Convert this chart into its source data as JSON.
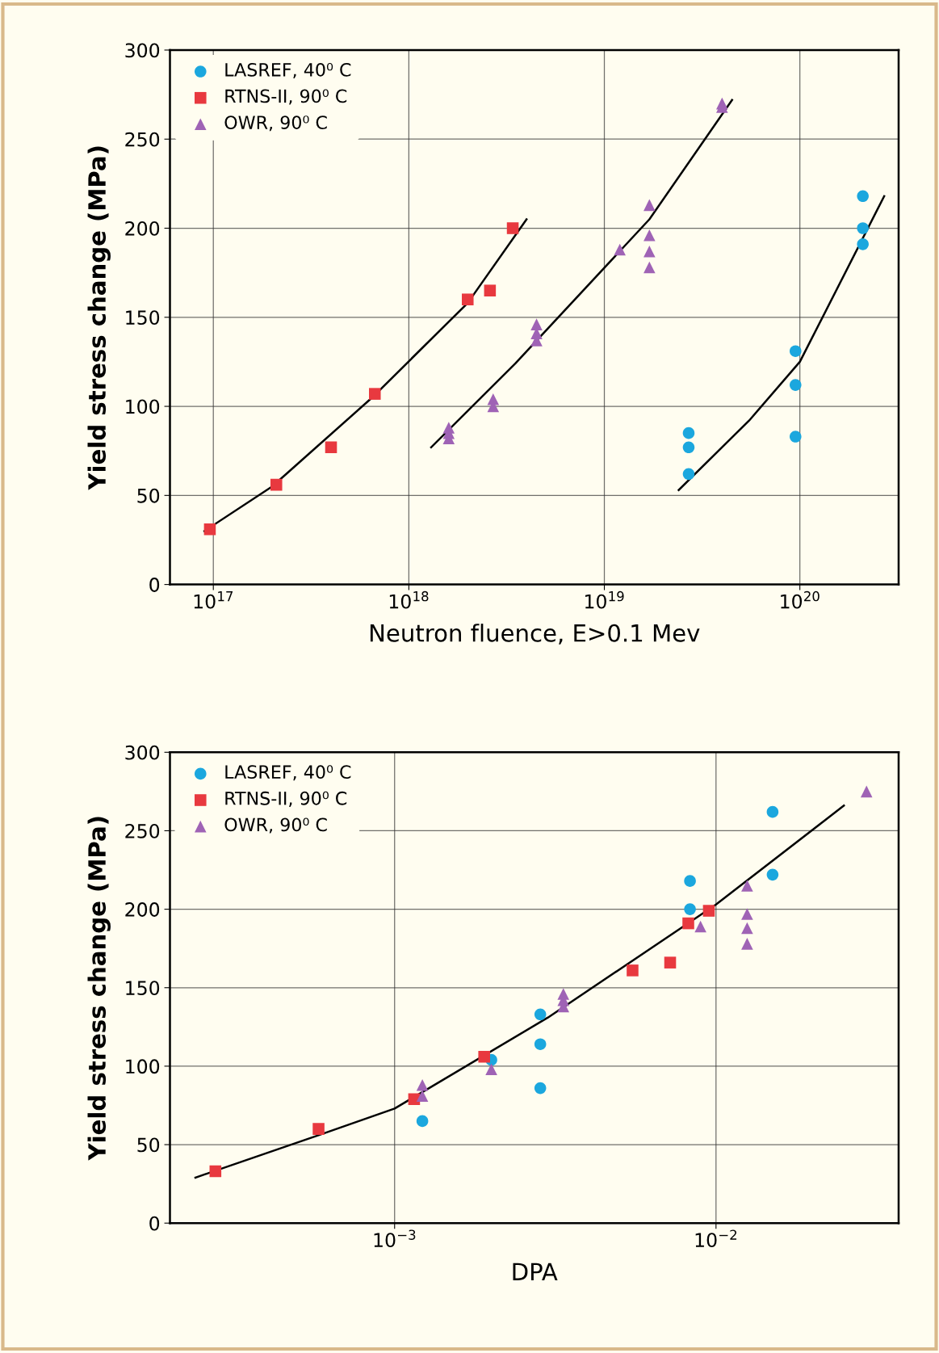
{
  "chart_data": [
    {
      "type": "scatter",
      "xlabel": "Neutron fluence, E>0.1 Mev",
      "ylabel": "Yield stress change (MPa)",
      "log": "x",
      "grid": true,
      "legend": "top left",
      "xlim": [
        6e+16,
        3.2e+20
      ],
      "xticks": [
        {
          "value": 1e+17,
          "label": "10$^{17}$"
        },
        {
          "value": 1e+18,
          "label": "10$^{18}$"
        },
        {
          "value": 1e+19,
          "label": "10$^{19}$"
        },
        {
          "value": 1e+20,
          "label": "10$^{20}$"
        }
      ],
      "ylim": [
        0,
        300
      ],
      "yticks": [
        0,
        50,
        100,
        150,
        200,
        250,
        300
      ],
      "series": [
        {
          "name": "LASREF, 40⁰ C",
          "type": "scatter",
          "marker": "circle",
          "color": "#1ba7de",
          "x": [
            2.7e+19,
            2.7e+19,
            2.7e+19,
            9.5e+19,
            9.5e+19,
            9.5e+19,
            2.1e+20,
            2.1e+20,
            2.1e+20
          ],
          "values": [
            85,
            77,
            62,
            131,
            112,
            83,
            218,
            200,
            191
          ]
        },
        {
          "name": "RTNS-II, 90⁰ C",
          "type": "scatter",
          "marker": "square",
          "color": "#e8393f",
          "x": [
            9.6e+16,
            2.1e+17,
            4e+17,
            6.7e+17,
            2e+18,
            2.6e+18,
            3.4e+18
          ],
          "values": [
            31,
            56,
            77,
            107,
            160,
            165,
            200
          ]
        },
        {
          "name": "OWR, 90⁰ C",
          "type": "scatter",
          "marker": "triangle",
          "color": "#9f63b5",
          "x": [
            1.6e+18,
            1.6e+18,
            1.6e+18,
            2.7e+18,
            2.7e+18,
            4.5e+18,
            4.5e+18,
            4.5e+18,
            1.2e+19,
            1.7e+19,
            1.7e+19,
            1.7e+19,
            1.7e+19,
            4e+19,
            4e+19
          ],
          "values": [
            88,
            85,
            82,
            104,
            100,
            146,
            141,
            137,
            188,
            213,
            196,
            187,
            178,
            270,
            268
          ]
        },
        {
          "type": "line",
          "marker": "none",
          "color": "#000000",
          "x": [
            9e+16,
            2e+17,
            6.5e+17,
            2e+18,
            4e+18
          ],
          "values": [
            30,
            55,
            105,
            158,
            205
          ]
        },
        {
          "type": "line",
          "marker": "none",
          "color": "#000000",
          "x": [
            1.3e+18,
            3.5e+18,
            1.7e+19,
            4.5e+19
          ],
          "values": [
            77,
            124,
            205,
            272
          ]
        },
        {
          "type": "line",
          "marker": "none",
          "color": "#000000",
          "x": [
            2.4e+19,
            5.5e+19,
            1e+20,
            2.7e+20
          ],
          "values": [
            53,
            92,
            125,
            218
          ]
        }
      ]
    },
    {
      "type": "scatter",
      "xlabel": "DPA",
      "ylabel": "Yield stress change (MPa)",
      "log": "x",
      "grid": true,
      "legend": "top left",
      "xlim": [
        0.0002,
        0.037
      ],
      "xticks": [
        {
          "value": 0.001,
          "label": "10$^{−3}$"
        },
        {
          "value": 0.01,
          "label": "10$^{−2}$"
        }
      ],
      "ylim": [
        0,
        300
      ],
      "yticks": [
        0,
        50,
        100,
        150,
        200,
        250,
        300
      ],
      "series": [
        {
          "name": "LASREF, 40⁰ C",
          "type": "scatter",
          "marker": "circle",
          "color": "#1ba7de",
          "x": [
            0.00122,
            0.002,
            0.00284,
            0.00284,
            0.00284,
            0.0083,
            0.0083,
            0.015,
            0.015
          ],
          "values": [
            65,
            104,
            133,
            114,
            86,
            218,
            200,
            262,
            222
          ]
        },
        {
          "name": "RTNS-II, 90⁰ C",
          "type": "scatter",
          "marker": "square",
          "color": "#e8393f",
          "x": [
            0.000277,
            0.00058,
            0.00115,
            0.0019,
            0.0055,
            0.0072,
            0.0082,
            0.0095
          ],
          "values": [
            33,
            60,
            79,
            106,
            161,
            166,
            191,
            199
          ]
        },
        {
          "name": "OWR, 90⁰ C",
          "type": "scatter",
          "marker": "triangle",
          "color": "#9f63b5",
          "x": [
            0.00122,
            0.00122,
            0.002,
            0.00335,
            0.00335,
            0.00335,
            0.00895,
            0.0125,
            0.0125,
            0.0125,
            0.0125,
            0.0294
          ],
          "values": [
            88,
            81,
            98,
            146,
            142,
            138,
            189,
            215,
            197,
            188,
            178,
            275
          ]
        },
        {
          "type": "line",
          "marker": "none",
          "color": "#000000",
          "x": [
            0.00024,
            0.00058,
            0.001,
            0.003,
            0.01,
            0.025
          ],
          "values": [
            29,
            56,
            73,
            131,
            203,
            266
          ]
        }
      ]
    }
  ]
}
